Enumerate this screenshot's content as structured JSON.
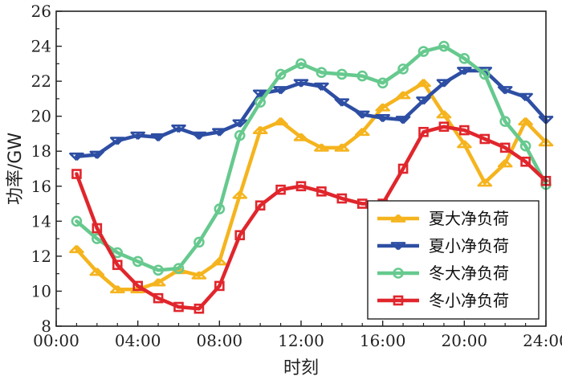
{
  "chart_data": {
    "type": "line",
    "xlabel": "时刻",
    "ylabel": "功率/GW",
    "xlim": [
      0,
      24
    ],
    "ylim": [
      8,
      26
    ],
    "x_ticks": [
      0,
      4,
      8,
      12,
      16,
      20,
      24
    ],
    "x_tick_labels": [
      "00:00",
      "04:00",
      "08:00",
      "12:00",
      "16:00",
      "20:00",
      "24:00"
    ],
    "y_ticks": [
      8,
      10,
      12,
      14,
      16,
      18,
      20,
      22,
      24,
      26
    ],
    "y_tick_labels": [
      "8",
      "10",
      "12",
      "14",
      "16",
      "18",
      "20",
      "22",
      "24",
      "26"
    ],
    "legend_position": "bottom-right",
    "x": [
      1,
      2,
      3,
      4,
      5,
      6,
      7,
      8,
      9,
      10,
      11,
      12,
      13,
      14,
      15,
      16,
      17,
      18,
      19,
      20,
      21,
      22,
      23,
      24
    ],
    "series": [
      {
        "name": "夏大净负荷",
        "color": "#F5B41E",
        "marker": "triangle-up",
        "values": [
          12.4,
          11.1,
          10.1,
          10.1,
          10.5,
          11.2,
          10.9,
          11.7,
          15.5,
          19.2,
          19.7,
          18.8,
          18.2,
          18.2,
          19.1,
          20.5,
          21.2,
          21.9,
          20.1,
          18.4,
          16.2,
          17.3,
          19.7,
          18.5
        ]
      },
      {
        "name": "夏小净负荷",
        "color": "#2D4EA3",
        "marker": "triangle-down",
        "values": [
          17.7,
          17.8,
          18.6,
          18.9,
          18.8,
          19.3,
          18.9,
          19.1,
          19.6,
          21.3,
          21.5,
          21.9,
          21.7,
          20.8,
          20.1,
          19.9,
          19.8,
          20.9,
          21.9,
          22.6,
          22.6,
          21.5,
          21.1,
          19.8
        ]
      },
      {
        "name": "冬大净负荷",
        "color": "#66C98E",
        "marker": "circle",
        "values": [
          14.0,
          13.0,
          12.2,
          11.7,
          11.2,
          11.3,
          12.8,
          14.7,
          18.9,
          20.8,
          22.4,
          23.0,
          22.5,
          22.4,
          22.3,
          21.9,
          22.7,
          23.7,
          24.0,
          23.3,
          22.4,
          19.7,
          18.3,
          16.1
        ]
      },
      {
        "name": "冬小净负荷",
        "color": "#E0262C",
        "marker": "square",
        "values": [
          16.7,
          13.6,
          11.5,
          10.3,
          9.6,
          9.1,
          9.0,
          10.3,
          13.2,
          14.9,
          15.8,
          16.0,
          15.7,
          15.3,
          15.0,
          15.0,
          17.0,
          19.1,
          19.4,
          19.2,
          18.7,
          18.2,
          17.4,
          16.3
        ]
      }
    ]
  }
}
